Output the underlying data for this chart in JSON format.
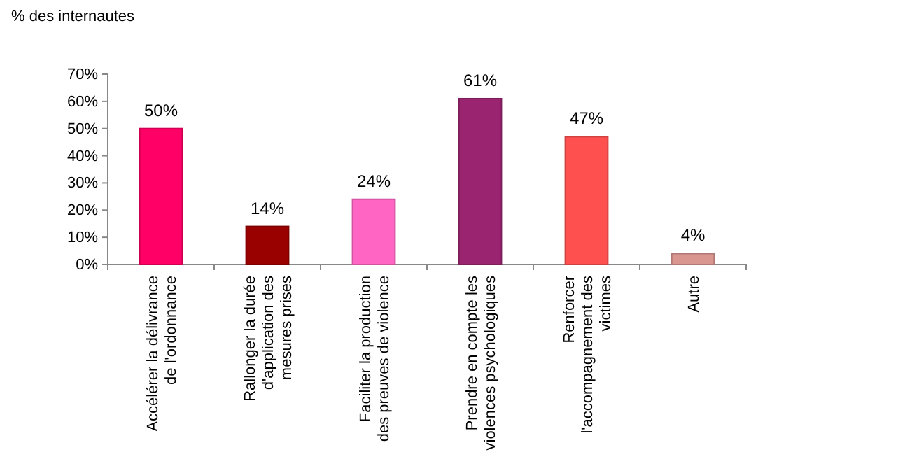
{
  "chart_data": {
    "type": "bar",
    "ylabel": "% des internautes",
    "categories": [
      "Accélérer la délivrance\nde l'ordonnance",
      "Rallonger la durée\nd'application des\nmesures prises",
      "Faciliter la production\ndes preuves de violence",
      "Prendre en compte les\nviolences psychologiques",
      "Renforcer\nl'accompagnement des\nvictimes",
      "Autre"
    ],
    "values": [
      50,
      14,
      24,
      61,
      47,
      4
    ],
    "colors": [
      "#ff0066",
      "#990000",
      "#ff66c4",
      "#9b2470",
      "#ff5050",
      "#d99590"
    ],
    "value_labels": [
      "50%",
      "14%",
      "24%",
      "61%",
      "47%",
      "4%"
    ],
    "ylim": [
      0,
      70
    ],
    "yticks": [
      {
        "value": 0,
        "label": "0%"
      },
      {
        "value": 10,
        "label": "10%"
      },
      {
        "value": 20,
        "label": "20%"
      },
      {
        "value": 30,
        "label": "30%"
      },
      {
        "value": 40,
        "label": "40%"
      },
      {
        "value": 50,
        "label": "50%"
      },
      {
        "value": 60,
        "label": "60%"
      },
      {
        "value": 70,
        "label": "70%"
      }
    ],
    "grid": false
  }
}
